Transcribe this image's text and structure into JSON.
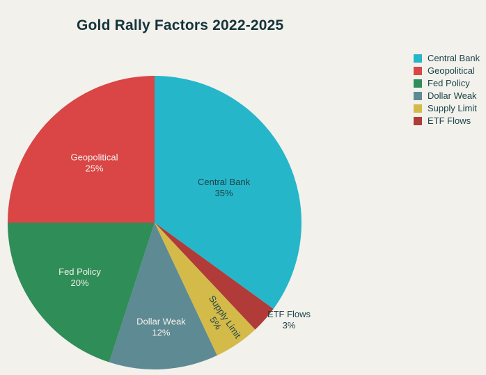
{
  "title": "Gold Rally Factors 2022-2025",
  "colors": {
    "background": "#f2f1ec",
    "title_text": "#15333a",
    "legend_text": "#1d4348",
    "dark_label": "#1d4348",
    "light_label": "#f2f1ec"
  },
  "chart_data": {
    "type": "pie",
    "title": "Gold Rally Factors 2022-2025",
    "legend_position": "right",
    "slices": [
      {
        "label": "Central Bank",
        "value": 35,
        "pct_label": "35%",
        "color": "#25b6c9",
        "label_color": "dark",
        "label_placement": "inside"
      },
      {
        "label": "Geopolitical",
        "value": 25,
        "pct_label": "25%",
        "color": "#da4545",
        "label_color": "light",
        "label_placement": "inside"
      },
      {
        "label": "Fed Policy",
        "value": 20,
        "pct_label": "20%",
        "color": "#2f8d58",
        "label_color": "light",
        "label_placement": "inside"
      },
      {
        "label": "Dollar Weak",
        "value": 12,
        "pct_label": "12%",
        "color": "#5e8a93",
        "label_color": "light",
        "label_placement": "inside"
      },
      {
        "label": "Supply Limit",
        "value": 5,
        "pct_label": "5%",
        "color": "#d4ba49",
        "label_color": "dark",
        "label_placement": "inside-rotated"
      },
      {
        "label": "ETF Flows",
        "value": 3,
        "pct_label": "3%",
        "color": "#b03b38",
        "label_color": "dark",
        "label_placement": "outside"
      }
    ],
    "clockwise_order_from_top": [
      "Central Bank",
      "ETF Flows",
      "Supply Limit",
      "Dollar Weak",
      "Fed Policy",
      "Geopolitical"
    ],
    "start_angle": "12 o'clock",
    "total": 100
  }
}
